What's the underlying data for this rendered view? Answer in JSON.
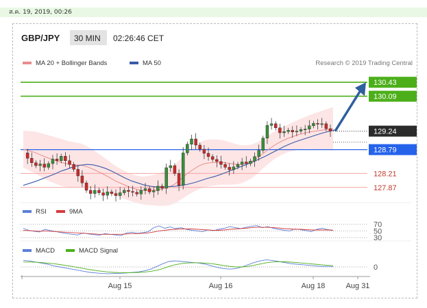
{
  "date_stamp": "ส.ค. 19, 2019, 00:26",
  "header": {
    "symbol": "GBP/JPY",
    "timeframe": "30 MIN",
    "time": "02:26:46 CET"
  },
  "credit": "Research © 2019 Trading Central",
  "colors": {
    "green_level": "#4caf1a",
    "blue_level": "#2563eb",
    "red_level": "#f4a3a3",
    "ma50": "#3b5ba9",
    "ma20": "#e88d8d",
    "band_fill": "#fde0e0",
    "candle_up": "#3a8f3a",
    "candle_down": "#cc2a2a",
    "rsi": "#5b7fd6",
    "rsi_ma": "#d43b3b",
    "macd": "#5b7fd6",
    "macd_signal": "#4caf1a",
    "arrow": "#2f5f9e"
  },
  "chart_data": [
    {
      "type": "line",
      "name": "price",
      "legend": [
        {
          "name": "MA 20 + Bollinger Bands",
          "color": "#e88d8d"
        },
        {
          "name": "MA 50",
          "color": "#3b5ba9"
        }
      ],
      "ylim": [
        127.5,
        130.7
      ],
      "levels": [
        {
          "value": 130.43,
          "label": "130.43",
          "style": "resistance"
        },
        {
          "value": 130.09,
          "label": "130.09",
          "style": "resistance"
        },
        {
          "value": 129.24,
          "label": "129.24",
          "style": "last"
        },
        {
          "value": 128.79,
          "label": "128.79",
          "style": "pivot"
        },
        {
          "value": 128.21,
          "label": "128.21",
          "style": "support"
        },
        {
          "value": 127.87,
          "label": "127.87",
          "style": "support"
        }
      ],
      "x_labels": [
        "Aug 15",
        "Aug 16",
        "Aug 18",
        "Aug 31"
      ],
      "close_path": [
        128.71,
        128.58,
        128.47,
        128.4,
        128.44,
        128.36,
        128.45,
        128.56,
        128.52,
        128.63,
        128.52,
        128.43,
        128.31,
        128.15,
        127.98,
        127.8,
        127.72,
        127.8,
        127.74,
        127.68,
        127.76,
        127.72,
        127.67,
        127.74,
        127.8,
        127.77,
        127.75,
        127.71,
        127.8,
        127.84,
        127.76,
        127.79,
        127.9,
        127.85,
        128.35,
        128.4,
        128.21,
        127.92,
        128.71,
        128.92,
        129.05,
        128.9,
        128.8,
        128.7,
        128.62,
        128.55,
        128.5,
        128.43,
        128.36,
        128.3,
        128.37,
        128.43,
        128.49,
        128.45,
        128.51,
        128.62,
        128.77,
        129.07,
        129.38,
        129.42,
        129.32,
        129.2,
        129.23,
        129.26,
        129.22,
        129.24,
        129.28,
        129.29,
        129.37,
        129.43,
        129.42,
        129.42,
        129.3,
        129.24
      ],
      "ma20": [
        128.8,
        128.76,
        128.72,
        128.66,
        128.6,
        128.55,
        128.5,
        128.46,
        128.43,
        128.42,
        128.41,
        128.37,
        128.31,
        128.24,
        128.17,
        128.09,
        128.01,
        127.95,
        127.89,
        127.84,
        127.8,
        127.79,
        127.8,
        127.81,
        127.84,
        127.88,
        127.96,
        128.08,
        128.2,
        128.3,
        128.39,
        128.45,
        128.47,
        128.48,
        128.48,
        128.46,
        128.44,
        128.43,
        128.45,
        128.5,
        128.58,
        128.69,
        128.8,
        128.9,
        128.98,
        129.05,
        129.1,
        129.15,
        129.19,
        129.22,
        129.24,
        129.26,
        129.28,
        129.3
      ],
      "ma50": [
        127.92,
        127.97,
        128.02,
        128.08,
        128.14,
        128.2,
        128.27,
        128.32,
        128.38,
        128.41,
        128.43,
        128.42,
        128.38,
        128.33,
        128.26,
        128.18,
        128.1,
        128.03,
        127.98,
        127.93,
        127.9,
        127.88,
        127.88,
        127.89,
        127.9,
        127.92,
        127.95,
        127.99,
        128.04,
        128.09,
        128.13,
        128.18,
        128.24,
        128.3,
        128.36,
        128.42,
        128.48,
        128.55,
        128.62,
        128.7,
        128.78,
        128.86,
        128.93,
        128.99,
        129.04,
        129.09,
        129.14,
        129.19,
        129.23,
        129.27
      ],
      "forecast": {
        "from": 129.24,
        "to": 130.43
      }
    },
    {
      "type": "line",
      "name": "rsi",
      "legend": [
        {
          "name": "RSI",
          "color": "#5b7fd6"
        },
        {
          "name": "9MA",
          "color": "#d43b3b"
        }
      ],
      "ylim": [
        20,
        90
      ],
      "y_ticks": [
        70,
        50,
        30
      ],
      "rsi_values": [
        58,
        52,
        49,
        47,
        55,
        51,
        48,
        45,
        42,
        40,
        38,
        44,
        41,
        39,
        37,
        42,
        40,
        38,
        36,
        44,
        46,
        43,
        45,
        48,
        60,
        65,
        58,
        62,
        57,
        60,
        55,
        52,
        50,
        48,
        53,
        51,
        55,
        58,
        63,
        60,
        57,
        61,
        64,
        66,
        60,
        63,
        58,
        55,
        52,
        50,
        56,
        54,
        51,
        48,
        55,
        58,
        54,
        52
      ],
      "ma_values": [
        52,
        51,
        50,
        49,
        50,
        49,
        48,
        47,
        46,
        45,
        44,
        43,
        42,
        41,
        40,
        40,
        40,
        40,
        40,
        41,
        42,
        42,
        43,
        44,
        47,
        50,
        52,
        54,
        55,
        56,
        56,
        56,
        55,
        54,
        53,
        52,
        52,
        53,
        55,
        56,
        57,
        58,
        60,
        61,
        61,
        61,
        60,
        59,
        57,
        56,
        55,
        55,
        54,
        53,
        53,
        53,
        53,
        52
      ]
    },
    {
      "type": "line",
      "name": "macd",
      "legend": [
        {
          "name": "MACD",
          "color": "#5b7fd6"
        },
        {
          "name": "MACD Signal",
          "color": "#4caf1a"
        }
      ],
      "ylim": [
        -1.0,
        1.0
      ],
      "y_ticks": [
        0
      ],
      "macd_values": [
        0.6,
        0.55,
        0.45,
        0.35,
        0.25,
        0.1,
        0.0,
        -0.1,
        -0.2,
        -0.3,
        -0.4,
        -0.5,
        -0.55,
        -0.6,
        -0.62,
        -0.6,
        -0.58,
        -0.55,
        -0.5,
        -0.45,
        -0.35,
        -0.2,
        0.05,
        0.3,
        0.5,
        0.55,
        0.5,
        0.45,
        0.4,
        0.35,
        0.25,
        0.1,
        -0.05,
        -0.15,
        -0.2,
        -0.15,
        0.0,
        0.2,
        0.4,
        0.55,
        0.65,
        0.6,
        0.5,
        0.4,
        0.3,
        0.25,
        0.2,
        0.15,
        0.1,
        0.05,
        0.05,
        0.04
      ],
      "signal_values": [
        0.45,
        0.45,
        0.43,
        0.4,
        0.35,
        0.3,
        0.22,
        0.14,
        0.05,
        -0.05,
        -0.15,
        -0.25,
        -0.33,
        -0.4,
        -0.46,
        -0.5,
        -0.52,
        -0.53,
        -0.52,
        -0.5,
        -0.46,
        -0.4,
        -0.3,
        -0.15,
        0.05,
        0.2,
        0.3,
        0.36,
        0.38,
        0.38,
        0.35,
        0.3,
        0.22,
        0.13,
        0.05,
        0.0,
        0.0,
        0.05,
        0.15,
        0.27,
        0.38,
        0.45,
        0.48,
        0.47,
        0.44,
        0.4,
        0.35,
        0.3,
        0.25,
        0.2,
        0.15,
        0.12
      ]
    }
  ]
}
